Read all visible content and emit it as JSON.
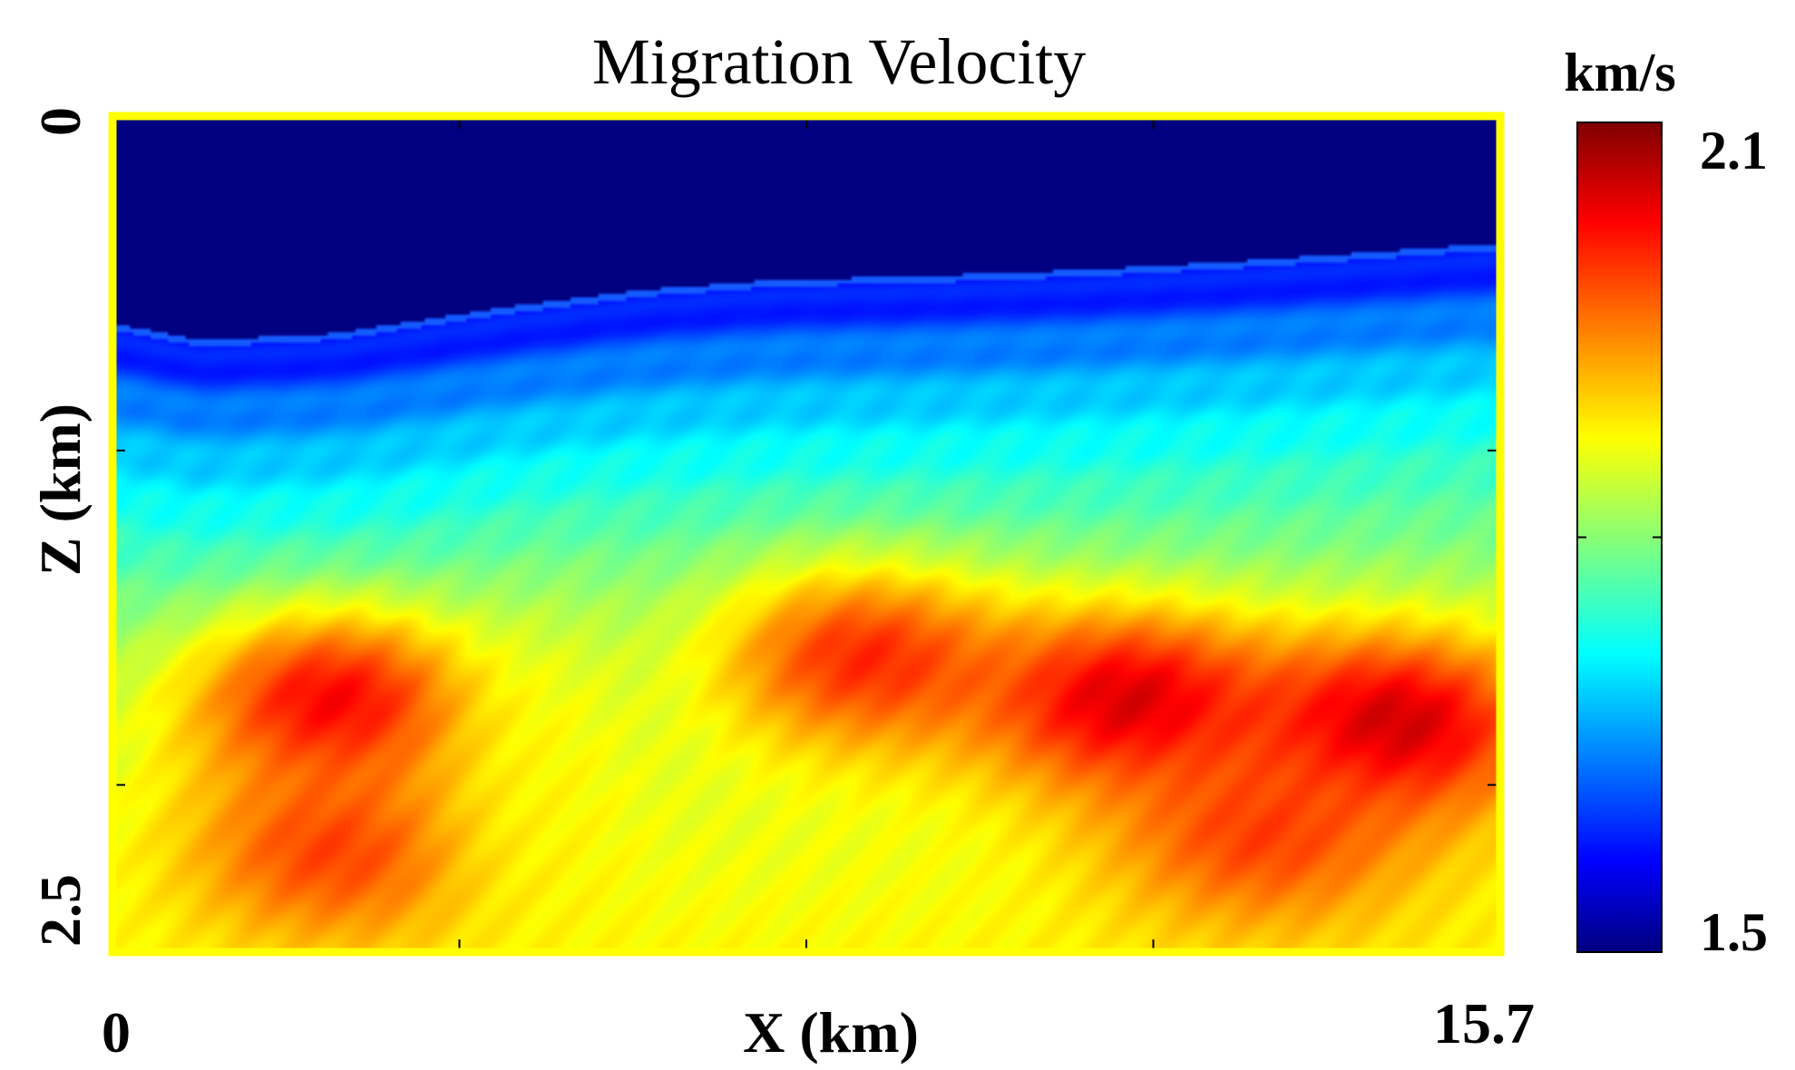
{
  "chart_data": {
    "type": "heatmap",
    "title": "Migration Velocity",
    "xlabel": "X (km)",
    "ylabel": "Z (km)",
    "xlim": [
      0,
      15.7
    ],
    "ylim": [
      0,
      2.5
    ],
    "y_inverted": true,
    "x_tick_labels": [
      "0",
      "15.7"
    ],
    "y_tick_labels": [
      "0",
      "2.5"
    ],
    "x_minor_ticks": [
      3.925,
      7.85,
      11.775
    ],
    "y_minor_ticks": [
      1.0,
      2.0
    ],
    "frame_color": "#ffff00",
    "colorbar": {
      "unit": "km/s",
      "min": 1.5,
      "max": 2.1,
      "tick_labels": [
        "2.1",
        "1.5"
      ],
      "colormap": "jet",
      "minor_ticks": [
        1.8
      ]
    },
    "velocity_model": {
      "water_velocity": 1.5,
      "water_bottom_depth": {
        "x": [
          0,
          1.0,
          2.5,
          4.5,
          6.0,
          7.5,
          9.0,
          11.0,
          13.0,
          15.7
        ],
        "z": [
          0.62,
          0.67,
          0.65,
          0.57,
          0.52,
          0.49,
          0.48,
          0.46,
          0.43,
          0.38
        ]
      },
      "high_velocity_lenses": [
        {
          "x": 2.5,
          "z": 1.75,
          "v": 2.05
        },
        {
          "x": 8.5,
          "z": 1.62,
          "v": 2.02
        },
        {
          "x": 11.5,
          "z": 1.75,
          "v": 2.07
        },
        {
          "x": 14.5,
          "z": 1.82,
          "v": 2.08
        },
        {
          "x": 2.5,
          "z": 2.2,
          "v": 2.0
        },
        {
          "x": 13.0,
          "z": 2.15,
          "v": 2.0
        }
      ],
      "low_velocity_zone": {
        "x": 5.0,
        "z": 2.05,
        "v": 1.88
      }
    }
  }
}
